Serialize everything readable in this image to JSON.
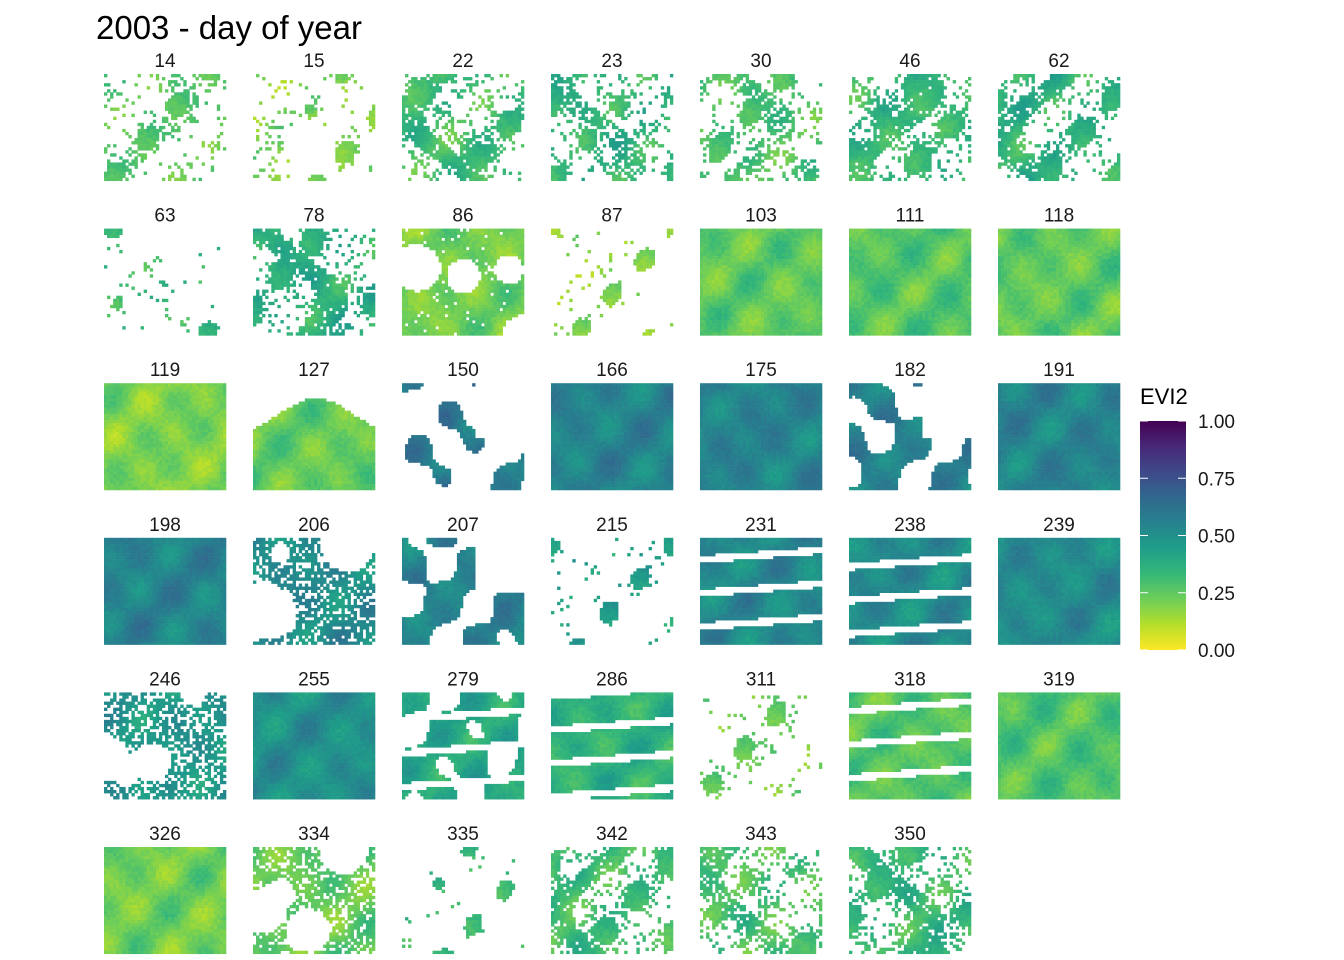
{
  "title": "2003 - day of year",
  "chart_data": {
    "type": "heatmap",
    "title": "2003 - day of year",
    "panel_layout": {
      "columns": 7,
      "rows": 6
    },
    "panels": [
      {
        "label": "14",
        "mean_evi2": 0.28,
        "coverage": 0.12,
        "mask": "sparse"
      },
      {
        "label": "15",
        "mean_evi2": 0.22,
        "coverage": 0.05,
        "mask": "sparse"
      },
      {
        "label": "22",
        "mean_evi2": 0.32,
        "coverage": 0.35,
        "mask": "sparse"
      },
      {
        "label": "23",
        "mean_evi2": 0.36,
        "coverage": 0.22,
        "mask": "sparse"
      },
      {
        "label": "30",
        "mean_evi2": 0.3,
        "coverage": 0.2,
        "mask": "sparse"
      },
      {
        "label": "46",
        "mean_evi2": 0.34,
        "coverage": 0.35,
        "mask": "sparse"
      },
      {
        "label": "62",
        "mean_evi2": 0.36,
        "coverage": 0.3,
        "mask": "sparse"
      },
      {
        "label": "63",
        "mean_evi2": 0.35,
        "coverage": 0.02,
        "mask": "sparse"
      },
      {
        "label": "78",
        "mean_evi2": 0.38,
        "coverage": 0.3,
        "mask": "sparse"
      },
      {
        "label": "86",
        "mean_evi2": 0.22,
        "coverage": 0.8,
        "mask": "holes"
      },
      {
        "label": "87",
        "mean_evi2": 0.2,
        "coverage": 0.03,
        "mask": "sparse"
      },
      {
        "label": "103",
        "mean_evi2": 0.25,
        "coverage": 1.0,
        "mask": "full"
      },
      {
        "label": "111",
        "mean_evi2": 0.27,
        "coverage": 1.0,
        "mask": "full"
      },
      {
        "label": "118",
        "mean_evi2": 0.25,
        "coverage": 1.0,
        "mask": "full"
      },
      {
        "label": "119",
        "mean_evi2": 0.2,
        "coverage": 1.0,
        "mask": "full"
      },
      {
        "label": "127",
        "mean_evi2": 0.24,
        "coverage": 0.6,
        "mask": "bottom"
      },
      {
        "label": "150",
        "mean_evi2": 0.58,
        "coverage": 0.25,
        "mask": "blob"
      },
      {
        "label": "166",
        "mean_evi2": 0.55,
        "coverage": 1.0,
        "mask": "full"
      },
      {
        "label": "175",
        "mean_evi2": 0.55,
        "coverage": 1.0,
        "mask": "full"
      },
      {
        "label": "182",
        "mean_evi2": 0.56,
        "coverage": 0.55,
        "mask": "blob"
      },
      {
        "label": "191",
        "mean_evi2": 0.55,
        "coverage": 1.0,
        "mask": "full"
      },
      {
        "label": "198",
        "mean_evi2": 0.55,
        "coverage": 1.0,
        "mask": "full"
      },
      {
        "label": "206",
        "mean_evi2": 0.52,
        "coverage": 0.55,
        "mask": "holes"
      },
      {
        "label": "207",
        "mean_evi2": 0.55,
        "coverage": 0.55,
        "mask": "blob"
      },
      {
        "label": "215",
        "mean_evi2": 0.45,
        "coverage": 0.03,
        "mask": "sparse"
      },
      {
        "label": "231",
        "mean_evi2": 0.53,
        "coverage": 0.7,
        "mask": "stripes"
      },
      {
        "label": "238",
        "mean_evi2": 0.52,
        "coverage": 0.7,
        "mask": "stripes"
      },
      {
        "label": "239",
        "mean_evi2": 0.52,
        "coverage": 1.0,
        "mask": "full"
      },
      {
        "label": "246",
        "mean_evi2": 0.48,
        "coverage": 0.45,
        "mask": "holes"
      },
      {
        "label": "255",
        "mean_evi2": 0.5,
        "coverage": 1.0,
        "mask": "full"
      },
      {
        "label": "279",
        "mean_evi2": 0.4,
        "coverage": 0.45,
        "mask": "stripes"
      },
      {
        "label": "286",
        "mean_evi2": 0.36,
        "coverage": 0.7,
        "mask": "stripes"
      },
      {
        "label": "311",
        "mean_evi2": 0.25,
        "coverage": 0.05,
        "mask": "sparse"
      },
      {
        "label": "318",
        "mean_evi2": 0.27,
        "coverage": 0.75,
        "mask": "stripes"
      },
      {
        "label": "319",
        "mean_evi2": 0.28,
        "coverage": 1.0,
        "mask": "full"
      },
      {
        "label": "326",
        "mean_evi2": 0.22,
        "coverage": 1.0,
        "mask": "full"
      },
      {
        "label": "334",
        "mean_evi2": 0.25,
        "coverage": 0.55,
        "mask": "holes"
      },
      {
        "label": "335",
        "mean_evi2": 0.35,
        "coverage": 0.01,
        "mask": "sparse"
      },
      {
        "label": "342",
        "mean_evi2": 0.32,
        "coverage": 0.35,
        "mask": "sparse"
      },
      {
        "label": "343",
        "mean_evi2": 0.3,
        "coverage": 0.25,
        "mask": "sparse"
      },
      {
        "label": "350",
        "mean_evi2": 0.34,
        "coverage": 0.4,
        "mask": "sparse"
      }
    ],
    "legend": {
      "title": "EVI2",
      "position": "right",
      "ticks": [
        1.0,
        0.75,
        0.5,
        0.25,
        0.0
      ],
      "tick_labels": [
        "1.00",
        "0.75",
        "0.50",
        "0.25",
        "0.00"
      ],
      "range": [
        0,
        1
      ],
      "colormap": "viridis (reversed)",
      "colors": [
        "#fde725",
        "#b5de2b",
        "#6ece58",
        "#35b779",
        "#1f9e89",
        "#26828e",
        "#31688e",
        "#3e4989",
        "#482878",
        "#440154"
      ]
    }
  }
}
